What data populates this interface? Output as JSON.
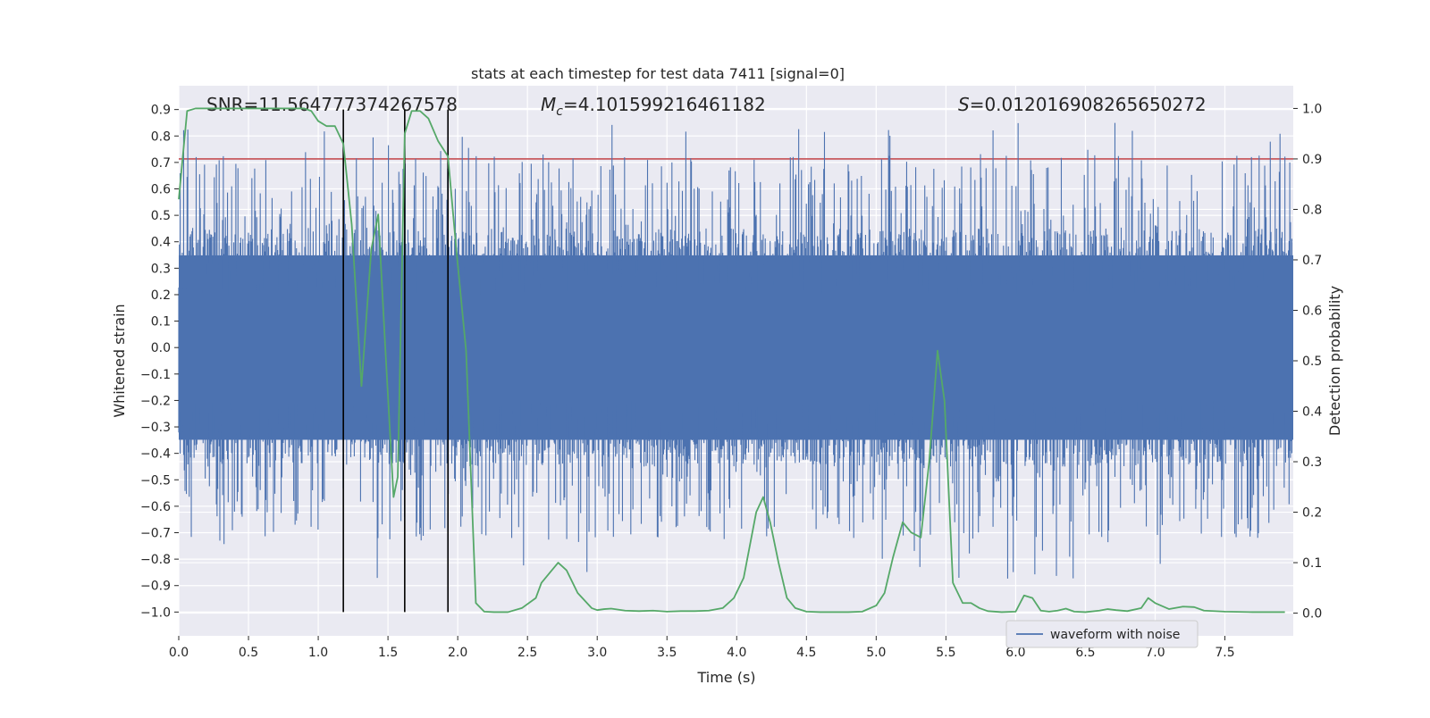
{
  "chart_data": {
    "type": "line",
    "title": "stats at each timestep for test data 7411 [signal=0]",
    "xlabel": "Time (s)",
    "ylabel": "Whitened strain",
    "y2label": "Detection probability",
    "xlim": [
      0.0,
      7.99
    ],
    "ylim": [
      -1.09,
      0.99
    ],
    "y2lim": [
      -0.045,
      1.045
    ],
    "x_ticks": [
      "0.0",
      "0.5",
      "1.0",
      "1.5",
      "2.0",
      "2.5",
      "3.0",
      "3.5",
      "4.0",
      "4.5",
      "5.0",
      "5.5",
      "6.0",
      "6.5",
      "7.0",
      "7.5"
    ],
    "x_tick_values": [
      0.0,
      0.5,
      1.0,
      1.5,
      2.0,
      2.5,
      3.0,
      3.5,
      4.0,
      4.5,
      5.0,
      5.5,
      6.0,
      6.5,
      7.0,
      7.5
    ],
    "y_ticks": [
      "0.9",
      "0.8",
      "0.7",
      "0.6",
      "0.5",
      "0.4",
      "0.3",
      "0.2",
      "0.1",
      "0.0",
      "−0.1",
      "−0.2",
      "−0.3",
      "−0.4",
      "−0.5",
      "−0.6",
      "−0.7",
      "−0.8",
      "−0.9",
      "−1.0"
    ],
    "y_tick_values": [
      0.9,
      0.8,
      0.7,
      0.6,
      0.5,
      0.4,
      0.3,
      0.2,
      0.1,
      0.0,
      -0.1,
      -0.2,
      -0.3,
      -0.4,
      -0.5,
      -0.6,
      -0.7,
      -0.8,
      -0.9,
      -1.0
    ],
    "y2_ticks": [
      "1.0",
      "0.9",
      "0.8",
      "0.7",
      "0.6",
      "0.5",
      "0.4",
      "0.3",
      "0.2",
      "0.1",
      "0.0"
    ],
    "y2_tick_values": [
      1.0,
      0.9,
      0.8,
      0.7,
      0.6,
      0.5,
      0.4,
      0.3,
      0.2,
      0.1,
      0.0
    ],
    "annotations": {
      "snr": "SNR=11.564777374267578",
      "mc_symbol": "M",
      "mc_sub": "c",
      "mc_value": "=4.101599216461182",
      "s_symbol": "S",
      "s_value": "=0.012016908265650272"
    },
    "legend": {
      "label": "waveform with noise",
      "position": "lower-right"
    },
    "threshold_line": {
      "y2": 0.9,
      "color": "#c44e52"
    },
    "vertical_lines": [
      1.18,
      1.62,
      1.93
    ],
    "waveform": {
      "name": "waveform with noise",
      "color": "#4c72b0",
      "samples": 1600,
      "seed": 7411,
      "dense_band": [
        -0.45,
        0.45
      ],
      "extreme_range": [
        -1.0,
        0.9
      ]
    },
    "probability": {
      "name": "detection probability",
      "color": "#55a868",
      "x": [
        0.0,
        0.06,
        0.12,
        0.2,
        0.3,
        0.5,
        0.7,
        0.9,
        0.95,
        1.0,
        1.06,
        1.12,
        1.18,
        1.24,
        1.31,
        1.38,
        1.43,
        1.48,
        1.54,
        1.57,
        1.62,
        1.67,
        1.73,
        1.79,
        1.86,
        1.93,
        1.99,
        2.06,
        2.13,
        2.19,
        2.26,
        2.36,
        2.46,
        2.56,
        2.6,
        2.66,
        2.72,
        2.78,
        2.86,
        2.96,
        3.0,
        3.05,
        3.1,
        3.2,
        3.3,
        3.4,
        3.5,
        3.6,
        3.7,
        3.8,
        3.9,
        3.98,
        4.05,
        4.14,
        4.19,
        4.24,
        4.3,
        4.36,
        4.42,
        4.5,
        4.6,
        4.7,
        4.8,
        4.9,
        5.0,
        5.06,
        5.12,
        5.19,
        5.25,
        5.32,
        5.38,
        5.44,
        5.49,
        5.55,
        5.62,
        5.68,
        5.74,
        5.8,
        5.9,
        6.0,
        6.06,
        6.12,
        6.18,
        6.24,
        6.3,
        6.36,
        6.42,
        6.5,
        6.6,
        6.66,
        6.72,
        6.8,
        6.9,
        6.95,
        7.0,
        7.1,
        7.2,
        7.28,
        7.35,
        7.5,
        7.7,
        7.93
      ],
      "y": [
        0.82,
        0.995,
        1.0,
        1.0,
        1.0,
        1.0,
        1.0,
        1.0,
        0.995,
        0.975,
        0.965,
        0.965,
        0.93,
        0.77,
        0.45,
        0.72,
        0.79,
        0.53,
        0.23,
        0.27,
        0.95,
        0.995,
        0.995,
        0.98,
        0.935,
        0.905,
        0.72,
        0.52,
        0.02,
        0.003,
        0.002,
        0.002,
        0.01,
        0.03,
        0.06,
        0.08,
        0.1,
        0.085,
        0.04,
        0.01,
        0.006,
        0.008,
        0.009,
        0.005,
        0.004,
        0.005,
        0.003,
        0.004,
        0.004,
        0.005,
        0.01,
        0.03,
        0.07,
        0.2,
        0.23,
        0.18,
        0.1,
        0.03,
        0.01,
        0.003,
        0.002,
        0.002,
        0.002,
        0.003,
        0.015,
        0.04,
        0.11,
        0.18,
        0.16,
        0.15,
        0.3,
        0.52,
        0.42,
        0.06,
        0.02,
        0.02,
        0.01,
        0.004,
        0.002,
        0.003,
        0.035,
        0.03,
        0.005,
        0.003,
        0.005,
        0.009,
        0.003,
        0.002,
        0.005,
        0.008,
        0.006,
        0.004,
        0.01,
        0.03,
        0.02,
        0.008,
        0.013,
        0.012,
        0.005,
        0.003,
        0.002,
        0.002
      ]
    }
  }
}
